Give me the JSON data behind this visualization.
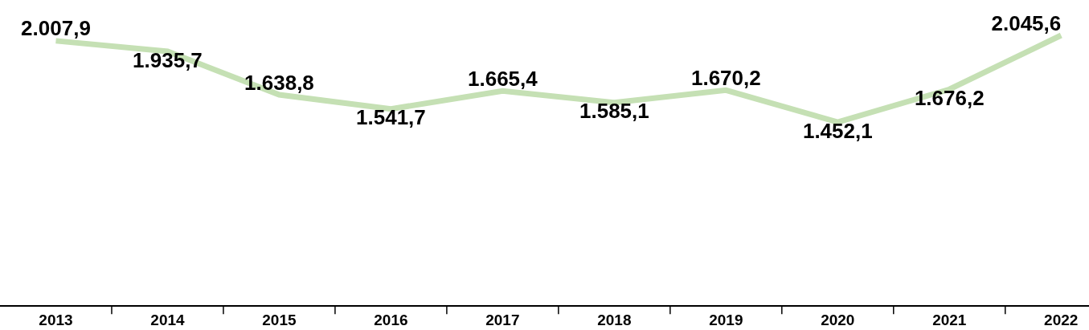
{
  "chart_data": {
    "type": "line",
    "categories": [
      "2013",
      "2014",
      "2015",
      "2016",
      "2017",
      "2018",
      "2019",
      "2020",
      "2021",
      "2022"
    ],
    "series": [
      {
        "color": "#c5e0b4",
        "values": [
          2007.9,
          1935.7,
          1638.8,
          1541.7,
          1665.4,
          1585.1,
          1670.2,
          1452.1,
          1676.2,
          2045.6
        ],
        "value_labels": [
          "2.007,9",
          "1.935,7",
          "1.638,8",
          "1.541,7",
          "1.665,4",
          "1.585,1",
          "1.670,2",
          "1.452,1",
          "1.676,2",
          "2.045,6"
        ]
      }
    ],
    "tick_labels": "x",
    "grid": false,
    "marker": "none",
    "line_style": "solid"
  }
}
